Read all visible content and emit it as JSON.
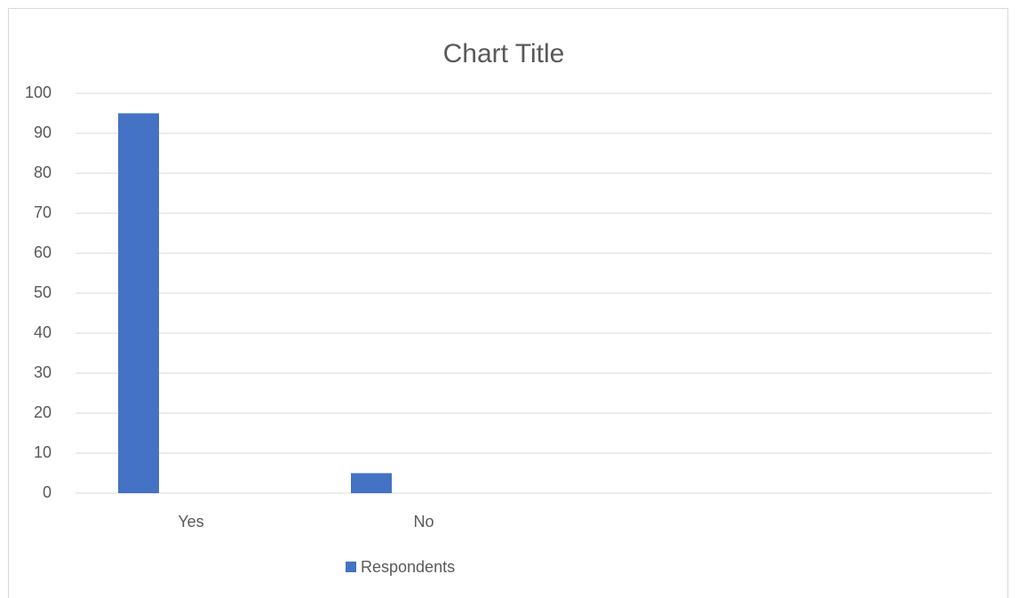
{
  "chart_data": {
    "type": "bar",
    "title": "Chart Title",
    "categories": [
      "Yes",
      "No"
    ],
    "series": [
      {
        "name": "Respondents",
        "values": [
          95,
          5
        ],
        "color": "#4472c4"
      }
    ],
    "ylim": [
      0,
      100
    ],
    "y_ticks": [
      0,
      10,
      20,
      30,
      40,
      50,
      60,
      70,
      80,
      90,
      100
    ],
    "y_tick_labels": [
      "0",
      "10",
      "20",
      "30",
      "40",
      "50",
      "60",
      "70",
      "80",
      "90",
      "100"
    ],
    "grid": true,
    "legend_position": "bottom",
    "colors": {
      "gridline": "#d9d9d9",
      "text": "#595959",
      "frame": "#d9d9d9"
    }
  }
}
